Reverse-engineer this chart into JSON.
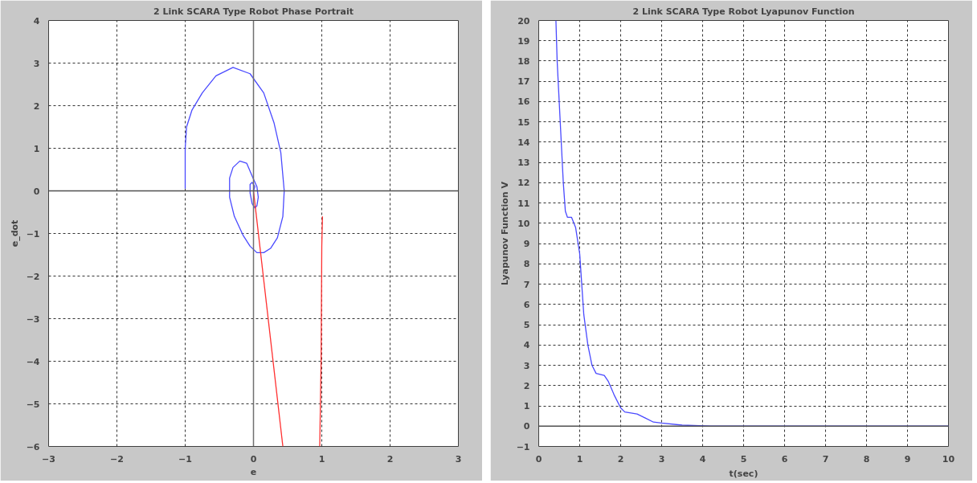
{
  "chart_data": [
    {
      "type": "line",
      "title": "2 Link SCARA Type Robot Phase Portrait",
      "xlabel": "e",
      "ylabel": "e_dot",
      "xlim": [
        -3,
        3
      ],
      "ylim": [
        -6,
        4
      ],
      "xticks": [
        -3,
        -2,
        -1,
        0,
        1,
        2,
        3
      ],
      "yticks": [
        -6,
        -5,
        -4,
        -3,
        -2,
        -1,
        0,
        1,
        2,
        3,
        4
      ],
      "grid": true,
      "ref_lines": [
        {
          "axis": "x",
          "value": 0,
          "color": "#707070"
        },
        {
          "axis": "y",
          "value": 0,
          "color": "#505050"
        }
      ],
      "series": [
        {
          "color": "#4a4aff",
          "x": [
            -1,
            -1,
            -0.98,
            -0.9,
            -0.75,
            -0.55,
            -0.3,
            -0.05,
            0.15,
            0.3,
            0.4,
            0.45,
            0.43,
            0.35,
            0.25,
            0.15,
            0.05,
            -0.05,
            -0.15,
            -0.28,
            -0.35,
            -0.35,
            -0.3,
            -0.2,
            -0.1,
            -0.02,
            0.05,
            0.07,
            0.05,
            0.02,
            -0.02,
            -0.05,
            -0.05,
            -0.02,
            0.02,
            0
          ],
          "values": [
            0.05,
            1.0,
            1.5,
            1.9,
            2.3,
            2.7,
            2.9,
            2.75,
            2.3,
            1.6,
            0.9,
            0.0,
            -0.6,
            -1.1,
            -1.35,
            -1.45,
            -1.45,
            -1.3,
            -1.05,
            -0.6,
            -0.15,
            0.3,
            0.55,
            0.7,
            0.65,
            0.35,
            0.1,
            -0.15,
            -0.35,
            -0.4,
            -0.3,
            -0.05,
            0.15,
            0.2,
            0.1,
            0
          ]
        },
        {
          "color": "#ff3030",
          "x": [
            0,
            0.43
          ],
          "values": [
            0,
            -6
          ]
        },
        {
          "color": "#ff3030",
          "x": [
            1.01,
            1.0,
            0.99,
            0.97
          ],
          "values": [
            -0.6,
            -1.3,
            -4,
            -6
          ]
        }
      ]
    },
    {
      "type": "line",
      "title": "2 Link SCARA Type Robot Lyapunov Function",
      "xlabel": "t(sec)",
      "ylabel": "Lyapunov Function V",
      "xlim": [
        0,
        10
      ],
      "ylim": [
        -1,
        20
      ],
      "xticks": [
        0,
        1,
        2,
        3,
        4,
        5,
        6,
        7,
        8,
        9,
        10
      ],
      "yticks": [
        -1,
        0,
        1,
        2,
        3,
        4,
        5,
        6,
        7,
        8,
        9,
        10,
        11,
        12,
        13,
        14,
        15,
        16,
        17,
        18,
        19,
        20
      ],
      "grid": true,
      "ref_lines": [
        {
          "axis": "y",
          "value": 0,
          "color": "#505050"
        }
      ],
      "series": [
        {
          "color": "#4a4aff",
          "x": [
            0.42,
            0.45,
            0.5,
            0.55,
            0.6,
            0.65,
            0.7,
            0.8,
            0.9,
            1.0,
            1.05,
            1.1,
            1.2,
            1.3,
            1.4,
            1.6,
            1.7,
            1.85,
            2.0,
            2.1,
            2.4,
            2.6,
            2.8,
            3.0,
            3.5,
            4.2,
            10
          ],
          "values": [
            20,
            18,
            16,
            14,
            12,
            10.6,
            10.3,
            10.3,
            9.8,
            8.5,
            7,
            5.5,
            4,
            3,
            2.6,
            2.5,
            2.2,
            1.5,
            0.9,
            0.7,
            0.6,
            0.4,
            0.2,
            0.15,
            0.05,
            0,
            0
          ]
        }
      ]
    }
  ]
}
